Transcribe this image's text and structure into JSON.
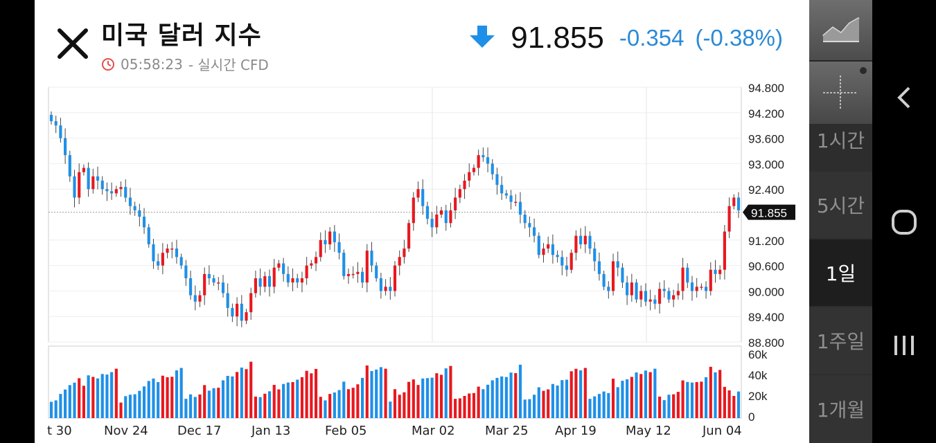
{
  "header": {
    "title": "미국 달러 지수",
    "time": "05:58:23",
    "source": "- 실시간 CFD",
    "price": "91.855",
    "change": "-0.354",
    "change_pct": "(-0.38%)"
  },
  "current_price_tag": "91.855",
  "timeframes": [
    {
      "label": "1시간",
      "active": false
    },
    {
      "label": "5시간",
      "active": false
    },
    {
      "label": "1일",
      "active": true
    },
    {
      "label": "1주일",
      "active": false
    },
    {
      "label": "1개월",
      "active": false
    }
  ],
  "colors": {
    "up": "#e8181f",
    "down": "#1e90e8",
    "accent": "#2b8ad6"
  },
  "chart_data": {
    "type": "candlestick",
    "y_ticks": [
      "94.800",
      "94.200",
      "93.600",
      "93.000",
      "92.400",
      "91.855",
      "91.200",
      "90.600",
      "90.000",
      "89.400",
      "88.800"
    ],
    "ylim": [
      88.8,
      94.8
    ],
    "x_ticks": [
      "t 30",
      "Nov 24",
      "Dec 17",
      "Jan 13",
      "Feb 05",
      "Mar 02",
      "Mar 25",
      "Apr 19",
      "May 12",
      "Jun 04"
    ],
    "volume_ticks": [
      "60k",
      "40k",
      "20k",
      "0"
    ],
    "volume_ylim": [
      0,
      60000
    ],
    "grid": true,
    "close_series": [
      94.0,
      93.9,
      93.6,
      93.2,
      92.7,
      92.2,
      92.8,
      92.9,
      92.4,
      92.7,
      92.6,
      92.4,
      92.35,
      92.3,
      92.4,
      92.45,
      92.2,
      92.0,
      91.9,
      91.75,
      91.5,
      91.1,
      90.7,
      90.6,
      90.9,
      91.0,
      91.0,
      90.8,
      90.6,
      90.3,
      89.9,
      89.75,
      89.9,
      90.4,
      90.3,
      90.2,
      90.2,
      89.95,
      89.6,
      89.4,
      89.7,
      89.3,
      89.5,
      89.95,
      90.3,
      90.1,
      90.35,
      90.1,
      90.55,
      90.65,
      90.4,
      90.2,
      90.3,
      90.2,
      90.3,
      90.6,
      90.65,
      90.8,
      91.2,
      91.1,
      91.4,
      91.15,
      90.9,
      90.35,
      90.4,
      90.4,
      90.45,
      90.2,
      90.95,
      90.6,
      90.3,
      90.0,
      90.1,
      90.0,
      90.6,
      90.8,
      91.0,
      91.6,
      92.2,
      92.4,
      92.0,
      91.7,
      91.5,
      91.8,
      91.9,
      91.6,
      91.9,
      92.2,
      92.4,
      92.6,
      92.8,
      92.9,
      93.2,
      93.15,
      93.0,
      92.75,
      92.5,
      92.3,
      92.25,
      92.1,
      92.1,
      91.8,
      91.6,
      91.5,
      91.3,
      90.85,
      91.0,
      91.1,
      90.85,
      90.8,
      90.6,
      90.5,
      90.9,
      91.3,
      91.1,
      91.3,
      91.0,
      90.7,
      90.4,
      90.1,
      90.0,
      90.7,
      90.55,
      90.2,
      89.9,
      90.2,
      89.8,
      90.0,
      89.75,
      89.8,
      89.7,
      90.05,
      90.0,
      89.8,
      89.9,
      90.0,
      90.55,
      90.2,
      90.0,
      90.1,
      90.1,
      90.0,
      90.5,
      90.4,
      90.5,
      91.4,
      92.0,
      92.2,
      91.9
    ]
  }
}
